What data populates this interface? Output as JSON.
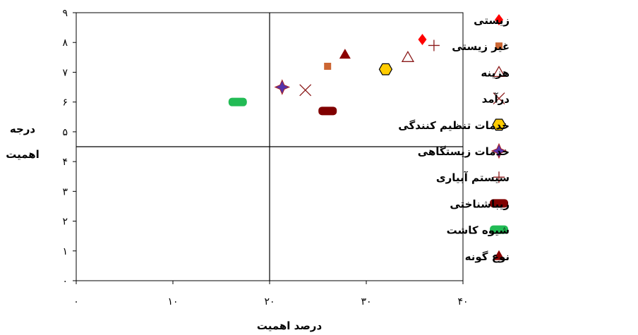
{
  "chart_data": {
    "type": "scatter",
    "xlabel": "درصد اهمیت",
    "ylabel_line1": "درجه",
    "ylabel_line2": "اهمیت",
    "xlim": [
      0,
      40
    ],
    "ylim": [
      0,
      9
    ],
    "x_ticks": [
      {
        "value": 0,
        "label": "۰"
      },
      {
        "value": 10,
        "label": "۱۰"
      },
      {
        "value": 20,
        "label": "۲۰"
      },
      {
        "value": 30,
        "label": "۳۰"
      },
      {
        "value": 40,
        "label": "۴۰"
      }
    ],
    "y_ticks": [
      {
        "value": 0,
        "label": "۰"
      },
      {
        "value": 1,
        "label": "۱"
      },
      {
        "value": 2,
        "label": "۲"
      },
      {
        "value": 3,
        "label": "۳"
      },
      {
        "value": 4,
        "label": "۴"
      },
      {
        "value": 5,
        "label": "۵"
      },
      {
        "value": 6,
        "label": "۶"
      },
      {
        "value": 7,
        "label": "۷"
      },
      {
        "value": 8,
        "label": "۸"
      },
      {
        "value": 9,
        "label": "۹"
      }
    ],
    "reference_lines": {
      "x": 20,
      "y": 4.5
    },
    "grid": false,
    "legend_position": "right",
    "series": [
      {
        "name": "زیستی",
        "marker": "diamond",
        "color": "#ff0000",
        "x": 35.8,
        "y": 8.1
      },
      {
        "name": "غیر زیستی",
        "marker": "square",
        "color": "#cc6633",
        "x": 26.0,
        "y": 7.2
      },
      {
        "name": "هزینه",
        "marker": "triangle-open",
        "color": "#8b1a1a",
        "x": 34.3,
        "y": 7.5
      },
      {
        "name": "درآمد",
        "marker": "x",
        "color": "#8b1a1a",
        "x": 23.7,
        "y": 6.4
      },
      {
        "name": "خدمات تنظیم کنندگی",
        "marker": "hexagon",
        "color": "#ffcc00",
        "x": 32.0,
        "y": 7.1
      },
      {
        "name": "خدمات زیستگاهی",
        "marker": "star4",
        "color": "#5533aa",
        "x": 21.3,
        "y": 6.5
      },
      {
        "name": "سیستم آبیاری",
        "marker": "plus",
        "color": "#8b1a1a",
        "x": 37.0,
        "y": 7.9
      },
      {
        "name": "زیباشناختی",
        "marker": "pill",
        "color": "#800000",
        "x": 26.0,
        "y": 5.7
      },
      {
        "name": "شیوه کاشت",
        "marker": "pill",
        "color": "#22bb55",
        "x": 16.7,
        "y": 6.0
      },
      {
        "name": "نوع گونه",
        "marker": "triangle",
        "color": "#8b0000",
        "x": 27.8,
        "y": 7.6
      }
    ]
  }
}
